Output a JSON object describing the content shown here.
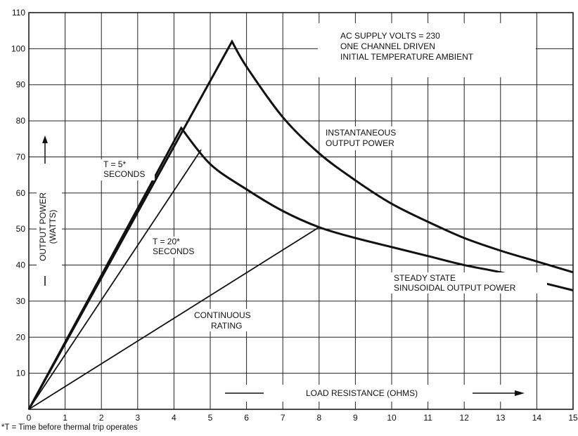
{
  "chart_data": {
    "type": "line",
    "title": "",
    "xlabel": "LOAD RESISTANCE (OHMS)",
    "ylabel_line1": "OUTPUT POWER",
    "ylabel_line2": "(WATTS)",
    "xlim": [
      0,
      15
    ],
    "ylim": [
      0,
      110
    ],
    "grid": true,
    "x_ticks": [
      0,
      1,
      2,
      3,
      4,
      5,
      6,
      7,
      8,
      9,
      10,
      11,
      12,
      13,
      14,
      15
    ],
    "y_ticks": [
      10,
      20,
      30,
      40,
      50,
      60,
      70,
      80,
      90,
      100,
      110
    ],
    "conditions": [
      "AC SUPPLY VOLTS = 230",
      "ONE CHANNEL DRIVEN",
      "INITIAL TEMPERATURE AMBIENT"
    ],
    "series": [
      {
        "name": "INSTANTANEOUS OUTPUT POWER",
        "x": [
          0,
          5.6,
          6,
          7,
          8,
          9,
          10,
          11,
          12,
          13,
          14,
          15
        ],
        "y": [
          0,
          102,
          95,
          81,
          71,
          63.5,
          57,
          52,
          47.5,
          44,
          41,
          38
        ]
      },
      {
        "name": "STEADY STATE SINUSOIDAL OUTPUT POWER",
        "x": [
          0,
          4.2,
          5,
          6,
          7,
          8,
          9,
          10,
          11,
          12,
          13,
          14,
          15
        ],
        "y": [
          0,
          78,
          68,
          61,
          55,
          50.5,
          47.5,
          45,
          42.5,
          40,
          38,
          35.5,
          33
        ]
      },
      {
        "name": "T = 5* SECONDS",
        "x": [
          0,
          4.2
        ],
        "y": [
          0,
          78
        ]
      },
      {
        "name": "T = 20* SECONDS",
        "x": [
          0,
          4.75
        ],
        "y": [
          0,
          72
        ]
      },
      {
        "name": "CONTINUOUS RATING",
        "x": [
          0,
          8
        ],
        "y": [
          0,
          50.5
        ]
      }
    ],
    "annotations": {
      "instantaneous": [
        "INSTANTANEOUS",
        "OUTPUT POWER"
      ],
      "t5": [
        "T = 5*",
        "SECONDS"
      ],
      "t20": [
        "T = 20*",
        "SECONDS"
      ],
      "steady": [
        "STEADY STATE",
        "SINUSOIDAL OUTPUT POWER"
      ],
      "continuous": [
        "CONTINUOUS",
        "RATING"
      ]
    },
    "footnote": "*T = Time before thermal trip operates"
  }
}
